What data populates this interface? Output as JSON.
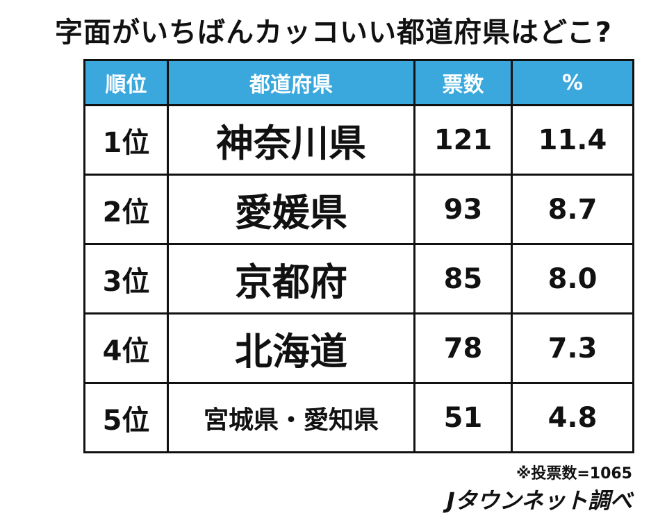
{
  "header": {
    "title": "字面がいちばんカッコいい都道府県はどこ?"
  },
  "table": {
    "headers": [
      "順位",
      "都道府県",
      "票数",
      "%"
    ],
    "rows": [
      [
        "1位",
        "神奈川県",
        "121",
        "11.4"
      ],
      [
        "2位",
        "愛媛県",
        "93",
        "8.7"
      ],
      [
        "3位",
        "京都府",
        "85",
        "8.0"
      ],
      [
        "4位",
        "北海道",
        "78",
        "7.3"
      ],
      [
        "5位",
        "宮城県・愛知県",
        "51",
        "4.8"
      ]
    ]
  },
  "footer": {
    "note": "※投票数=1065",
    "credit": "Jタウンネット調べ"
  }
}
